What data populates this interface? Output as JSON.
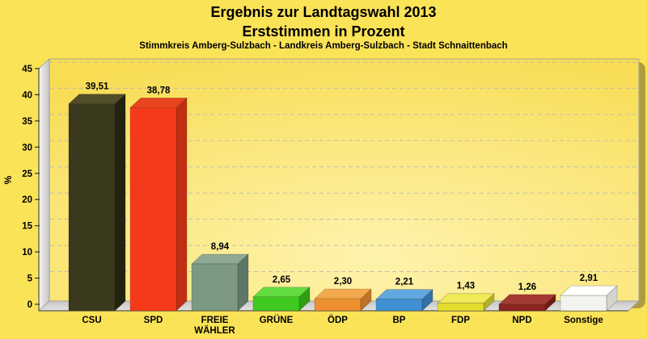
{
  "header": {
    "title_line1": "Ergebnis zur Landtagswahl 2013",
    "title_line2": "Erststimmen in Prozent",
    "subtitle": "Stimmkreis Amberg-Sulzbach - Landkreis Amberg-Sulzbach - Stadt Schnaittenbach"
  },
  "chart_data": {
    "type": "bar",
    "style": "3d-column",
    "title": "Ergebnis zur Landtagswahl 2013",
    "subtitle": "Erststimmen in Prozent",
    "caption": "Stimmkreis Amberg-Sulzbach - Landkreis Amberg-Sulzbach - Stadt Schnaittenbach",
    "xlabel": "",
    "ylabel": "%",
    "ylim": [
      0,
      45
    ],
    "ytick_step": 5,
    "yticks": [
      0,
      5,
      10,
      15,
      20,
      25,
      30,
      35,
      40,
      45
    ],
    "grid": "horizontal-dashed",
    "legend_position": "none",
    "decimal_separator": ",",
    "categories": [
      "CSU",
      "SPD",
      "FREIE WÄHLER",
      "GRÜNE",
      "ÖDP",
      "BP",
      "FDP",
      "NPD",
      "Sonstige"
    ],
    "values": [
      39.51,
      38.78,
      8.94,
      2.65,
      2.3,
      2.21,
      1.43,
      1.26,
      2.91
    ],
    "value_labels": [
      "39,51",
      "38,78",
      "8,94",
      "2,65",
      "2,30",
      "2,21",
      "1,43",
      "1,26",
      "2,91"
    ],
    "bar_colors": [
      {
        "party": "CSU",
        "front": "#3B391D",
        "top": "#514E28",
        "side": "#23220F"
      },
      {
        "party": "SPD",
        "front": "#F53A1C",
        "top": "#E8441F",
        "side": "#C22E12"
      },
      {
        "party": "FREIE WÄHLER",
        "front": "#7D9883",
        "top": "#90A995",
        "side": "#5F7769"
      },
      {
        "party": "GRÜNE",
        "front": "#3FC81F",
        "top": "#63DC40",
        "side": "#2F9E16"
      },
      {
        "party": "ÖDP",
        "front": "#EE9030",
        "top": "#F3A94E",
        "side": "#BE7327"
      },
      {
        "party": "BP",
        "front": "#3F90D3",
        "top": "#61A8E0",
        "side": "#3170A8"
      },
      {
        "party": "FDP",
        "front": "#E4DE30",
        "top": "#EEEA58",
        "side": "#B5B126"
      },
      {
        "party": "NPD",
        "front": "#8C2521",
        "top": "#A23A32",
        "side": "#6D1B18"
      },
      {
        "party": "Sonstige",
        "front": "#F3F3EF",
        "top": "#FEFEFC",
        "side": "#D4D4CF"
      }
    ]
  },
  "colors": {
    "page_background": "#FBE357",
    "plot_gradient_center": "#FEF3AC",
    "plot_gradient_mid": "#FBE77E",
    "plot_gradient_edge": "#F8DC52",
    "wall_light": "#F2F2F2",
    "wall_dark": "#C6C6C6",
    "floor_light": "#E4E4E4",
    "floor_dark": "#C6C6C6",
    "gridline": "#BFBFB2",
    "axis_line": "#55524A",
    "frame_border": "#A9A699",
    "shadow": "rgba(110,100,45,0.55)",
    "text": "#000000"
  }
}
